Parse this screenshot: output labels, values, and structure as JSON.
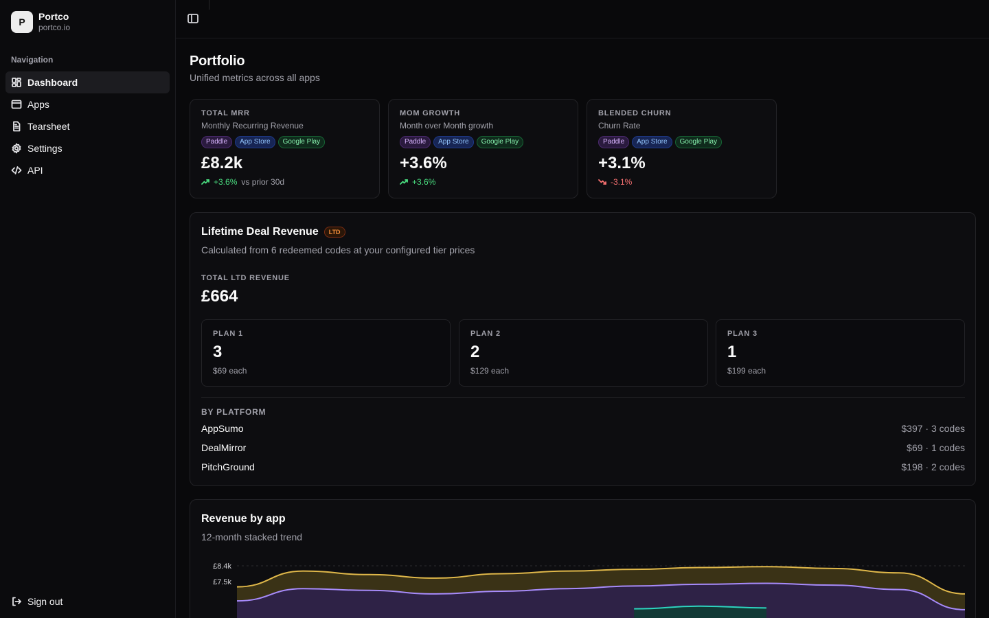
{
  "brand": {
    "initial": "P",
    "name": "Portco",
    "domain": "portco.io"
  },
  "sidebar": {
    "heading": "Navigation",
    "items": [
      {
        "label": "Dashboard",
        "icon": "dashboard-icon",
        "active": true
      },
      {
        "label": "Apps",
        "icon": "apps-icon"
      },
      {
        "label": "Tearsheet",
        "icon": "document-icon"
      },
      {
        "label": "Settings",
        "icon": "gear-icon"
      },
      {
        "label": "API",
        "icon": "code-icon"
      }
    ],
    "signout": "Sign out"
  },
  "page": {
    "title": "Portfolio",
    "subtitle": "Unified metrics across all apps"
  },
  "badges": {
    "paddle": "Paddle",
    "appstore": "App Store",
    "gplay": "Google Play"
  },
  "kpis": [
    {
      "label": "TOTAL MRR",
      "desc": "Monthly Recurring Revenue",
      "value": "£8.2k",
      "trend": "+3.6%",
      "direction": "up",
      "suffix": "vs prior 30d"
    },
    {
      "label": "MOM GROWTH",
      "desc": "Month over Month growth",
      "value": "+3.6%",
      "trend": "+3.6%",
      "direction": "up",
      "suffix": ""
    },
    {
      "label": "BLENDED CHURN",
      "desc": "Churn Rate",
      "value": "+3.1%",
      "trend": "-3.1%",
      "direction": "down",
      "suffix": ""
    }
  ],
  "ltd": {
    "title": "Lifetime Deal Revenue",
    "badge": "LTD",
    "subtitle": "Calculated from 6 redeemed codes at your configured tier prices",
    "total_label": "TOTAL LTD REVENUE",
    "total": "£664",
    "plans": [
      {
        "label": "PLAN 1",
        "count": "3",
        "price": "$69 each"
      },
      {
        "label": "PLAN 2",
        "count": "2",
        "price": "$129 each"
      },
      {
        "label": "PLAN 3",
        "count": "1",
        "price": "$199 each"
      }
    ],
    "platform_label": "BY PLATFORM",
    "platforms": [
      {
        "name": "AppSumo",
        "value": "$397 · 3 codes"
      },
      {
        "name": "DealMirror",
        "value": "$69 · 1 codes"
      },
      {
        "name": "PitchGround",
        "value": "$198 · 2 codes"
      }
    ]
  },
  "revenue": {
    "title": "Revenue by app",
    "subtitle": "12-month stacked trend"
  },
  "chart_data": {
    "type": "area",
    "y_ticks": [
      "£8.4k",
      "£7.5k"
    ],
    "series": [
      {
        "color": "#e0b84a",
        "values": [
          7.2,
          8.1,
          7.9,
          7.7,
          7.95,
          8.1,
          8.2,
          8.3,
          8.35,
          8.25,
          8.0,
          6.8
        ]
      },
      {
        "color": "#a78bfa",
        "values": [
          6.4,
          7.1,
          7.0,
          6.8,
          6.95,
          7.1,
          7.25,
          7.35,
          7.4,
          7.3,
          7.05,
          5.9
        ]
      },
      {
        "color": "#2dd4bf",
        "values": [
          null,
          null,
          null,
          null,
          null,
          null,
          5.95,
          6.1,
          6.0,
          null,
          null,
          null
        ]
      }
    ],
    "colors": {
      "gold": "#e0b84a",
      "purple": "#a78bfa",
      "teal": "#2dd4bf"
    }
  }
}
